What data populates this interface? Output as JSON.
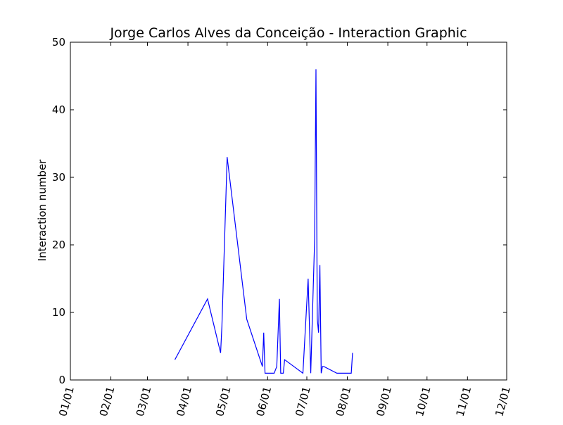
{
  "chart_data": {
    "type": "line",
    "title": "Jorge Carlos Alves da Conceição - Interaction Graphic",
    "xlabel": "",
    "ylabel": "Interaction number",
    "x_ticks": [
      "01/01",
      "02/01",
      "03/01",
      "04/01",
      "05/01",
      "06/01",
      "07/01",
      "08/01",
      "09/01",
      "10/01",
      "11/01",
      "12/01"
    ],
    "xlim": [
      "01/01",
      "12/01"
    ],
    "y_ticks": [
      0,
      10,
      20,
      30,
      40,
      50
    ],
    "ylim": [
      0,
      50
    ],
    "grid": false,
    "legend": "none",
    "line_color": "#0000ff",
    "series": [
      {
        "x": [
          "03/22",
          "04/16",
          "04/26",
          "04/27",
          "05/01",
          "05/16",
          "05/28",
          "05/29",
          "05/30",
          "06/06",
          "06/08",
          "06/10",
          "06/11",
          "06/13",
          "06/14",
          "06/28",
          "07/02",
          "07/04",
          "07/07",
          "07/08",
          "07/09",
          "07/10",
          "07/11",
          "07/12",
          "07/13",
          "07/14",
          "07/24",
          "08/04",
          "08/05"
        ],
        "y": [
          3,
          12,
          4,
          8,
          33,
          9,
          2,
          7,
          1,
          1,
          2,
          12,
          1,
          1,
          3,
          1,
          15,
          1,
          21,
          46,
          9,
          7,
          17,
          1,
          2,
          2,
          1,
          1,
          4
        ]
      }
    ]
  }
}
